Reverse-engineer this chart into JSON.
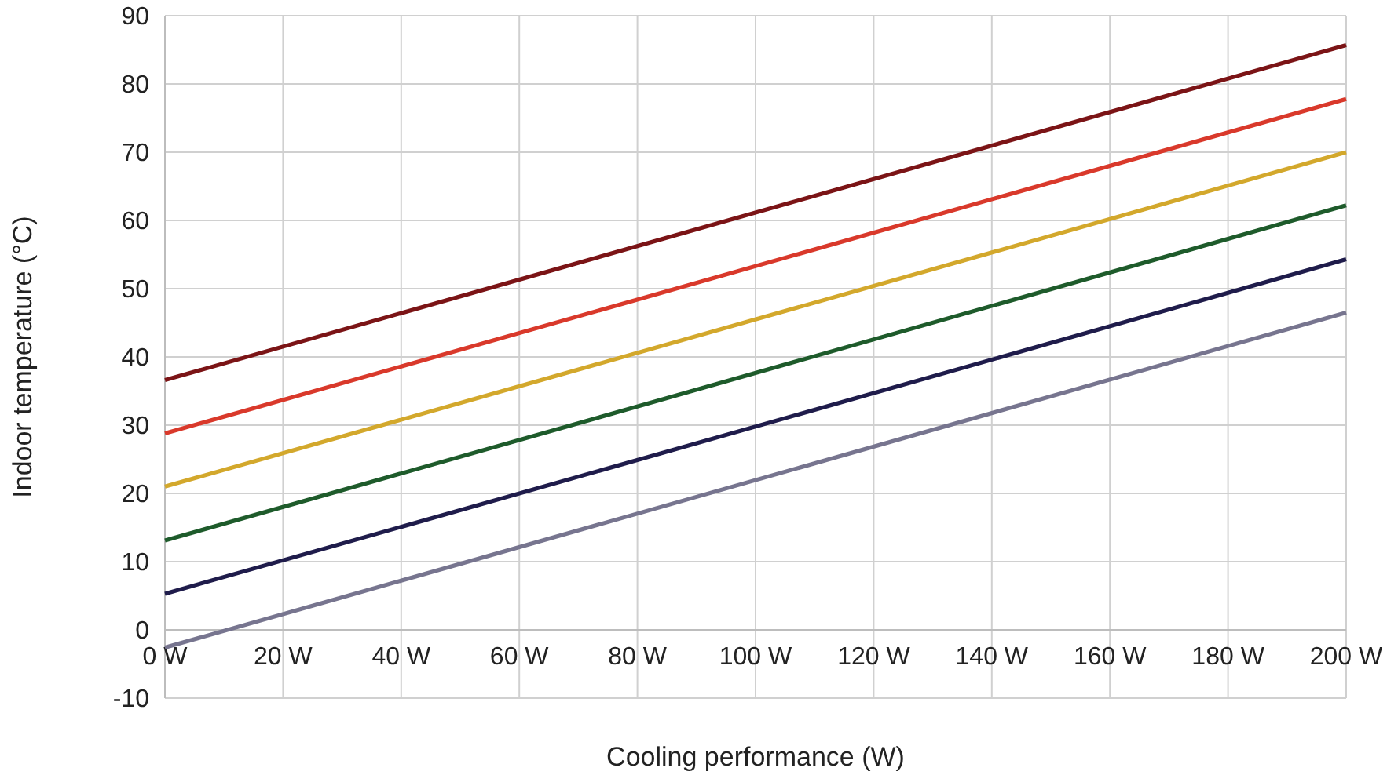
{
  "chart_data": {
    "type": "line",
    "xlabel": "Cooling performance (W)",
    "ylabel": "Indoor temperature (°C)",
    "x": [
      0,
      200
    ],
    "xlim": [
      0,
      200
    ],
    "xticks": [
      {
        "value": 0,
        "label": "0 W"
      },
      {
        "value": 20,
        "label": "20 W"
      },
      {
        "value": 40,
        "label": "40 W"
      },
      {
        "value": 60,
        "label": "60 W"
      },
      {
        "value": 80,
        "label": "80 W"
      },
      {
        "value": 100,
        "label": "100 W"
      },
      {
        "value": 120,
        "label": "120 W"
      },
      {
        "value": 140,
        "label": "140 W"
      },
      {
        "value": 160,
        "label": "160 W"
      },
      {
        "value": 180,
        "label": "180 W"
      },
      {
        "value": 200,
        "label": "200 W"
      }
    ],
    "ylim": [
      -10,
      90
    ],
    "yticks": [
      -10,
      0,
      10,
      20,
      30,
      40,
      50,
      60,
      70,
      80,
      90
    ],
    "grid": true,
    "marker": "none",
    "line_style": "solid",
    "series": [
      {
        "color": "#7b1416",
        "values": [
          36.6,
          85.7
        ]
      },
      {
        "color": "#d9392b",
        "values": [
          28.8,
          77.8
        ]
      },
      {
        "color": "#d3a82c",
        "values": [
          21,
          70
        ]
      },
      {
        "color": "#1e5b2b",
        "values": [
          13.1,
          62.2
        ]
      },
      {
        "color": "#1f1c4b",
        "values": [
          5.3,
          54.3
        ]
      },
      {
        "color": "#77758f",
        "values": [
          -2.6,
          46.5
        ]
      }
    ]
  }
}
